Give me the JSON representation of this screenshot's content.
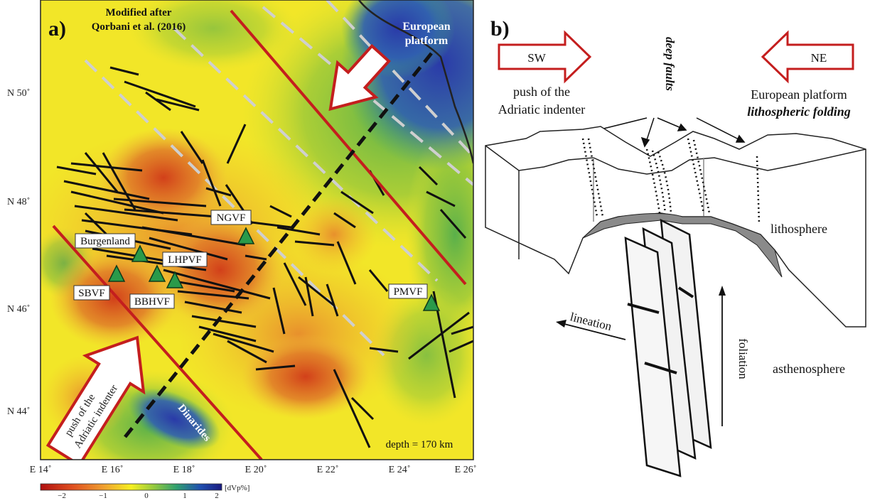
{
  "panel_a": {
    "label": "a)",
    "credit_line1": "Modified after",
    "credit_line2": "Qorbani et al. (2016)",
    "european_platform_line1": "European",
    "european_platform_line2": "platform",
    "dinarides": "Dinarides",
    "push_line1": "push of the",
    "push_line2": "Adriatic indenter",
    "depth": "depth = 170 km",
    "lat_labels": [
      "N 50˚",
      "N 48˚",
      "N 46˚",
      "N 44˚"
    ],
    "lon_labels": [
      "E 14˚",
      "E 16˚",
      "E 18˚",
      "E 20˚",
      "E 22˚",
      "E 24˚",
      "E 26˚"
    ],
    "volcanic_fields": [
      "Burgenland",
      "LHPVF",
      "SBVF",
      "BBHVF",
      "NGVF",
      "PMVF"
    ],
    "colorbar": {
      "ticks": [
        "−2",
        "−1",
        "0",
        "1",
        "2"
      ],
      "unit": "[dVp%]",
      "colors": [
        "#c01818",
        "#e06020",
        "#f0b030",
        "#f4f020",
        "#80c040",
        "#30a070",
        "#2050b0",
        "#1a1a80"
      ]
    }
  },
  "panel_b": {
    "label": "b)",
    "sw": "SW",
    "ne": "NE",
    "deep_faults": "deep faults",
    "push_line1": "push of the",
    "push_line2": "Adriatic indenter",
    "european_platform": "European platform",
    "lithospheric_folding": "lithospheric folding",
    "lithosphere": "lithosphere",
    "asthenosphere": "asthenosphere",
    "lineation": "lineation",
    "foliation": "foliation"
  },
  "colors": {
    "accent_red": "#c41e1e",
    "volcano_green": "#2a9a4a",
    "fault_gray": "#c8c8c8"
  }
}
